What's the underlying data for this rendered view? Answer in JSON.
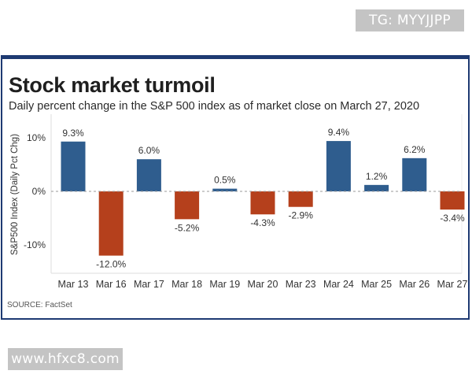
{
  "watermarks": {
    "top": "TG: MYYJJPP",
    "bottom": "www.hfxc8.com"
  },
  "colors": {
    "positive": "#2f5d8e",
    "negative": "#b5401c",
    "border": "#1e3a72"
  },
  "chart_data": {
    "type": "bar",
    "title": "Stock market turmoil",
    "subtitle": "Daily percent change in the S&P 500 index as of market close on March 27, 2020",
    "xlabel": "",
    "ylabel": "S&P500 Index (Daily Pct Chg)",
    "ylim": [
      -15,
      11
    ],
    "yticks": [
      10,
      0,
      -10
    ],
    "ytick_labels": [
      "10%",
      "0%",
      "-10%"
    ],
    "categories": [
      "Mar 13",
      "Mar 16",
      "Mar 17",
      "Mar 18",
      "Mar 19",
      "Mar 20",
      "Mar 23",
      "Mar 24",
      "Mar 25",
      "Mar 26",
      "Mar 27"
    ],
    "values": [
      9.3,
      -12.0,
      6.0,
      -5.2,
      0.5,
      -4.3,
      -2.9,
      9.4,
      1.2,
      6.2,
      -3.4
    ],
    "value_labels": [
      "9.3%",
      "-12.0%",
      "6.0%",
      "-5.2%",
      "0.5%",
      "-4.3%",
      "-2.9%",
      "9.4%",
      "1.2%",
      "6.2%",
      "-3.4%"
    ],
    "source": "SOURCE: FactSet"
  }
}
